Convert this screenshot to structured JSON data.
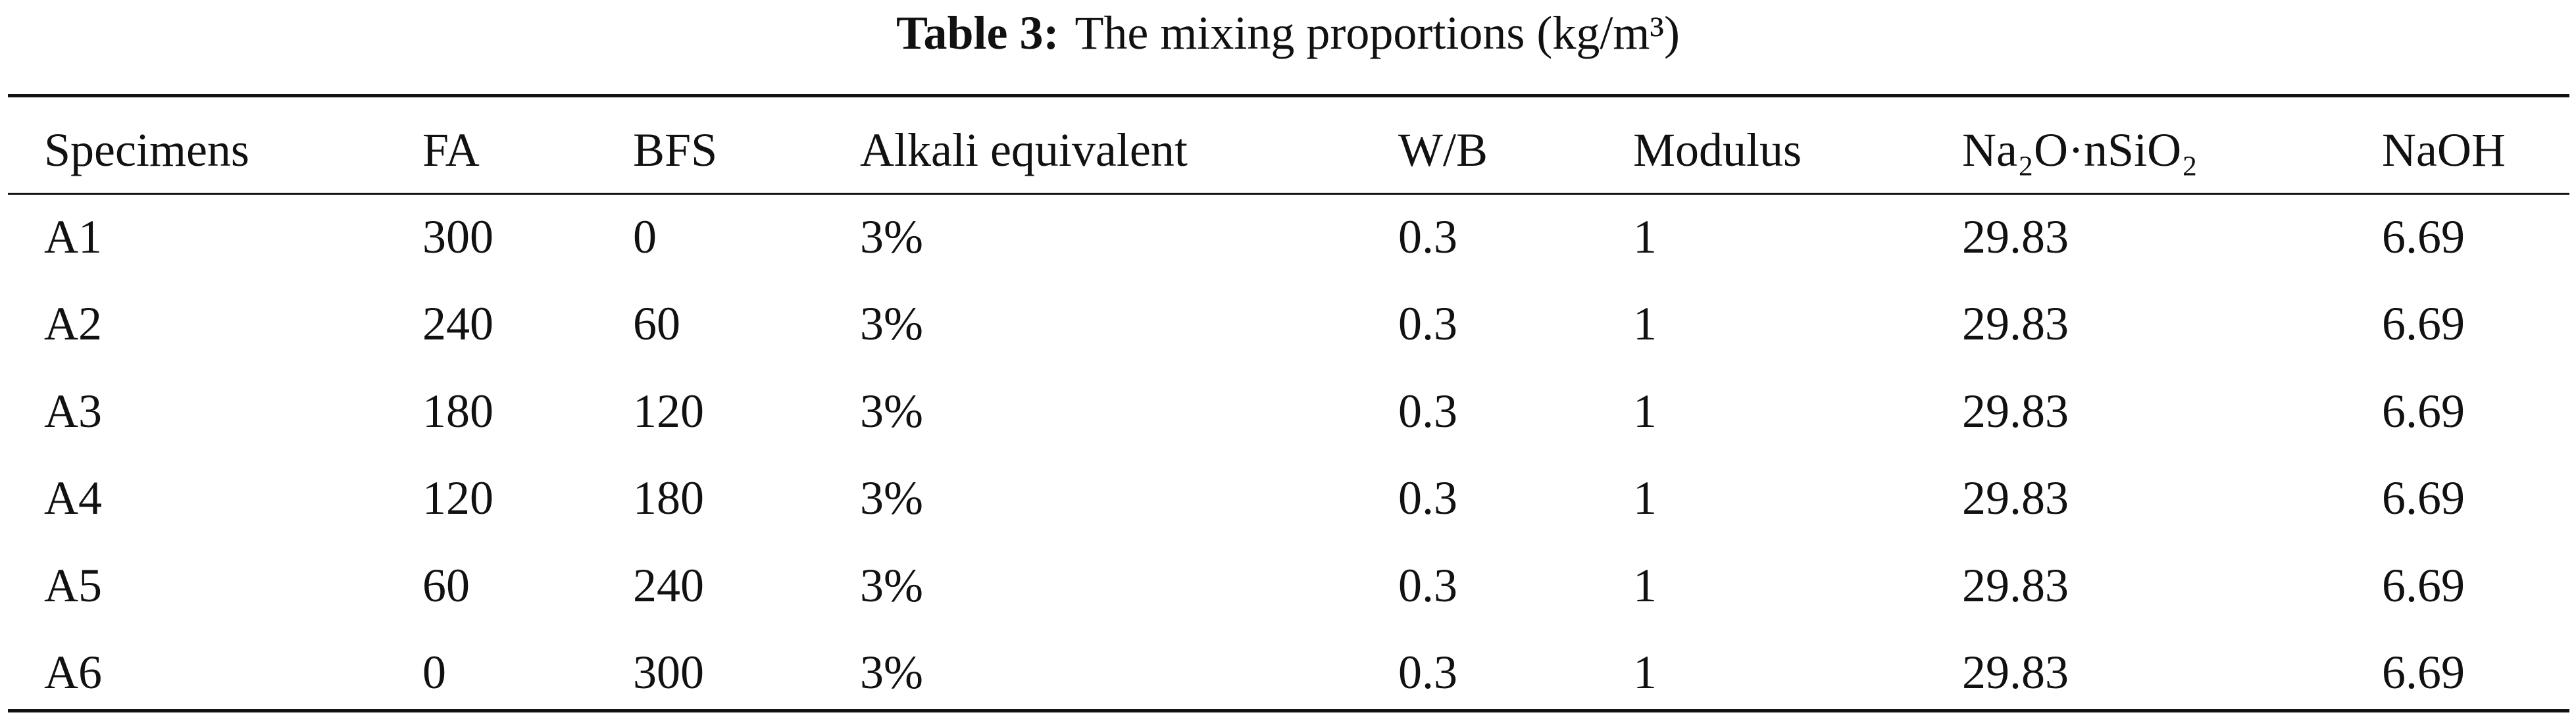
{
  "title": {
    "label": "Table 3:",
    "text": "The mixing proportions (kg/m³)"
  },
  "table": {
    "header": [
      "Specimens",
      "FA",
      "BFS",
      "Alkali equivalent",
      "W/B",
      "Modulus",
      "Na₂O·nSiO₂",
      "NaOH"
    ],
    "rows": [
      [
        "A1",
        300,
        0,
        "3%",
        0.3,
        1,
        29.83,
        6.69
      ],
      [
        "A2",
        240,
        60,
        "3%",
        0.3,
        1,
        29.83,
        6.69
      ],
      [
        "A3",
        180,
        120,
        "3%",
        0.3,
        1,
        29.83,
        6.69
      ],
      [
        "A4",
        120,
        180,
        "3%",
        0.3,
        1,
        29.83,
        6.69
      ],
      [
        "A5",
        60,
        240,
        "3%",
        0.3,
        1,
        29.83,
        6.69
      ],
      [
        "A6",
        0,
        300,
        "3%",
        0.3,
        1,
        29.83,
        6.69
      ]
    ]
  }
}
